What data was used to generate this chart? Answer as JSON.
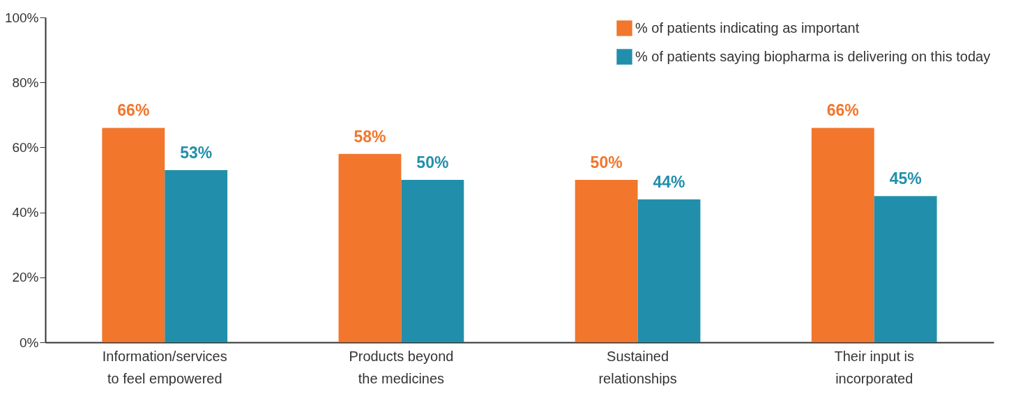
{
  "chart_data": {
    "type": "bar",
    "categories": [
      "Information/services to feel empowered",
      "Products beyond the medicines",
      "Sustained relationships",
      "Their input is incorporated"
    ],
    "series": [
      {
        "name": "% of patients indicating as important",
        "color": "#f2762c",
        "values": [
          66,
          58,
          50,
          66
        ],
        "value_labels": [
          "66%",
          "58%",
          "50%",
          "66%"
        ]
      },
      {
        "name": "% of patients saying biopharma is delivering on this today",
        "color": "#218fab",
        "values": [
          53,
          50,
          44,
          45
        ],
        "value_labels": [
          "53%",
          "50%",
          "44%",
          "45%"
        ]
      }
    ],
    "ylim": [
      0,
      100
    ],
    "yticks": [
      {
        "value": 0,
        "label": "0%"
      },
      {
        "value": 20,
        "label": "20%"
      },
      {
        "value": 40,
        "label": "40%"
      },
      {
        "value": 60,
        "label": "60%"
      },
      {
        "value": 80,
        "label": "80%"
      },
      {
        "value": 100,
        "label": "100%"
      }
    ],
    "grid": false,
    "legend": "top right"
  }
}
